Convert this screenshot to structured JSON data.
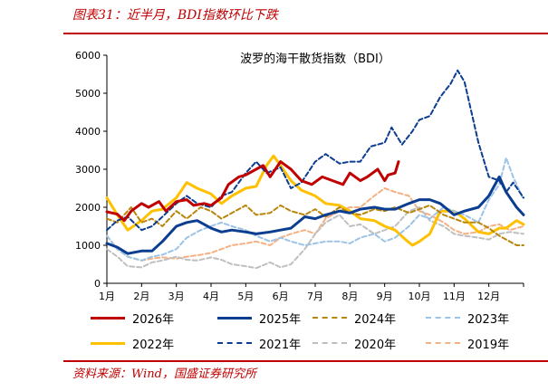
{
  "header": {
    "title": "图表31：近半月，BDI指数环比下跌"
  },
  "footer": {
    "source": "资料来源：Wind，国盛证券研究所"
  },
  "chart_data": {
    "type": "line",
    "title": "波罗的海干散货指数（BDI）",
    "xlabel": "",
    "ylabel": "",
    "categories": [
      "1月",
      "2月",
      "3月",
      "4月",
      "5月",
      "6月",
      "7月",
      "8月",
      "9月",
      "10月",
      "11月",
      "12月"
    ],
    "ylim": [
      0,
      6000
    ],
    "yticks": [
      0,
      1000,
      2000,
      3000,
      4000,
      5000,
      6000
    ],
    "series": [
      {
        "name": "2026年",
        "color": "#c00000",
        "style": "solid",
        "width": 3,
        "values": [
          [
            0,
            1880
          ],
          [
            0.3,
            1820
          ],
          [
            0.5,
            1650
          ],
          [
            0.7,
            1900
          ],
          [
            1.0,
            2100
          ],
          [
            1.2,
            2000
          ],
          [
            1.5,
            2150
          ],
          [
            1.7,
            1900
          ],
          [
            2.0,
            2150
          ],
          [
            2.3,
            2200
          ],
          [
            2.5,
            2050
          ],
          [
            2.8,
            2100
          ],
          [
            3.0,
            2050
          ],
          [
            3.3,
            2250
          ],
          [
            3.5,
            2600
          ],
          [
            3.8,
            2800
          ],
          [
            4.0,
            2850
          ],
          [
            4.3,
            3000
          ],
          [
            4.5,
            3100
          ],
          [
            4.7,
            2800
          ],
          [
            5.0,
            3200
          ],
          [
            5.3,
            3000
          ],
          [
            5.6,
            2700
          ],
          [
            5.9,
            2600
          ],
          [
            6.2,
            2800
          ],
          [
            6.5,
            2700
          ],
          [
            6.8,
            2600
          ],
          [
            7.0,
            2900
          ],
          [
            7.3,
            2700
          ],
          [
            7.5,
            2800
          ],
          [
            7.8,
            3000
          ],
          [
            8.0,
            2700
          ],
          [
            8.1,
            2850
          ],
          [
            8.3,
            2900
          ],
          [
            8.4,
            3200
          ]
        ]
      },
      {
        "name": "2025年",
        "color": "#0b3d91",
        "style": "solid",
        "width": 3,
        "values": [
          [
            0,
            1050
          ],
          [
            0.3,
            950
          ],
          [
            0.6,
            780
          ],
          [
            1.0,
            850
          ],
          [
            1.3,
            850
          ],
          [
            1.6,
            1100
          ],
          [
            2.0,
            1500
          ],
          [
            2.3,
            1600
          ],
          [
            2.6,
            1650
          ],
          [
            3.0,
            1450
          ],
          [
            3.3,
            1350
          ],
          [
            3.6,
            1400
          ],
          [
            4.0,
            1350
          ],
          [
            4.3,
            1300
          ],
          [
            4.7,
            1350
          ],
          [
            5.0,
            1400
          ],
          [
            5.3,
            1450
          ],
          [
            5.7,
            1750
          ],
          [
            6.0,
            1700
          ],
          [
            6.3,
            1800
          ],
          [
            6.7,
            1900
          ],
          [
            7.0,
            1850
          ],
          [
            7.3,
            1950
          ],
          [
            7.7,
            2000
          ],
          [
            8.0,
            1950
          ],
          [
            8.3,
            1950
          ],
          [
            8.7,
            2100
          ],
          [
            9.0,
            2200
          ],
          [
            9.3,
            2200
          ],
          [
            9.6,
            2100
          ],
          [
            10.0,
            1800
          ],
          [
            10.3,
            1900
          ],
          [
            10.7,
            2000
          ],
          [
            11.0,
            2300
          ],
          [
            11.3,
            2800
          ],
          [
            11.5,
            2400
          ],
          [
            11.8,
            2000
          ],
          [
            12.0,
            1800
          ]
        ]
      },
      {
        "name": "2024年",
        "color": "#b8860b",
        "style": "dashed",
        "width": 2,
        "values": [
          [
            0,
            1700
          ],
          [
            0.3,
            1600
          ],
          [
            0.7,
            2000
          ],
          [
            1.0,
            1600
          ],
          [
            1.3,
            1700
          ],
          [
            1.6,
            1500
          ],
          [
            2.0,
            1900
          ],
          [
            2.3,
            1700
          ],
          [
            2.7,
            2000
          ],
          [
            3.0,
            1900
          ],
          [
            3.3,
            1700
          ],
          [
            3.6,
            1850
          ],
          [
            4.0,
            2050
          ],
          [
            4.3,
            1800
          ],
          [
            4.7,
            1850
          ],
          [
            5.0,
            2050
          ],
          [
            5.3,
            1900
          ],
          [
            5.7,
            1800
          ],
          [
            6.0,
            1950
          ],
          [
            6.3,
            1750
          ],
          [
            6.7,
            2000
          ],
          [
            7.0,
            1850
          ],
          [
            7.3,
            1800
          ],
          [
            7.7,
            1950
          ],
          [
            8.0,
            1900
          ],
          [
            8.3,
            2000
          ],
          [
            8.7,
            1850
          ],
          [
            9.0,
            1950
          ],
          [
            9.3,
            2050
          ],
          [
            9.7,
            1800
          ],
          [
            10.0,
            1700
          ],
          [
            10.3,
            1600
          ],
          [
            10.7,
            1600
          ],
          [
            11.0,
            1450
          ],
          [
            11.3,
            1250
          ],
          [
            11.6,
            1100
          ],
          [
            11.8,
            1000
          ],
          [
            12.0,
            1000
          ]
        ]
      },
      {
        "name": "2023年",
        "color": "#9dc3e6",
        "style": "dashed",
        "width": 2,
        "values": [
          [
            0,
            1250
          ],
          [
            0.3,
            900
          ],
          [
            0.6,
            700
          ],
          [
            1.0,
            600
          ],
          [
            1.3,
            700
          ],
          [
            1.6,
            750
          ],
          [
            2.0,
            900
          ],
          [
            2.3,
            1200
          ],
          [
            2.7,
            1400
          ],
          [
            3.0,
            1500
          ],
          [
            3.3,
            1600
          ],
          [
            3.6,
            1500
          ],
          [
            4.0,
            1400
          ],
          [
            4.3,
            1250
          ],
          [
            4.7,
            1100
          ],
          [
            5.0,
            1200
          ],
          [
            5.3,
            1100
          ],
          [
            5.7,
            1000
          ],
          [
            6.0,
            1050
          ],
          [
            6.3,
            1100
          ],
          [
            6.7,
            1100
          ],
          [
            7.0,
            1050
          ],
          [
            7.3,
            1200
          ],
          [
            7.7,
            1300
          ],
          [
            8.0,
            1100
          ],
          [
            8.3,
            1200
          ],
          [
            8.7,
            1500
          ],
          [
            9.0,
            1800
          ],
          [
            9.3,
            1700
          ],
          [
            9.7,
            2000
          ],
          [
            10.0,
            1900
          ],
          [
            10.3,
            1800
          ],
          [
            10.7,
            1600
          ],
          [
            11.0,
            2200
          ],
          [
            11.3,
            2600
          ],
          [
            11.5,
            3300
          ],
          [
            11.7,
            2800
          ],
          [
            12.0,
            2200
          ]
        ]
      },
      {
        "name": "2022年",
        "color": "#ffc000",
        "style": "solid",
        "width": 3,
        "values": [
          [
            0,
            2250
          ],
          [
            0.3,
            1800
          ],
          [
            0.6,
            1400
          ],
          [
            1.0,
            1650
          ],
          [
            1.3,
            1900
          ],
          [
            1.6,
            1950
          ],
          [
            2.0,
            2250
          ],
          [
            2.3,
            2650
          ],
          [
            2.6,
            2500
          ],
          [
            3.0,
            2350
          ],
          [
            3.3,
            2100
          ],
          [
            3.6,
            2300
          ],
          [
            4.0,
            2500
          ],
          [
            4.3,
            2550
          ],
          [
            4.6,
            3100
          ],
          [
            4.8,
            3350
          ],
          [
            5.0,
            3100
          ],
          [
            5.3,
            2700
          ],
          [
            5.6,
            2450
          ],
          [
            6.0,
            2300
          ],
          [
            6.3,
            2100
          ],
          [
            6.7,
            2050
          ],
          [
            7.0,
            1900
          ],
          [
            7.3,
            1700
          ],
          [
            7.7,
            1650
          ],
          [
            8.0,
            1500
          ],
          [
            8.3,
            1400
          ],
          [
            8.6,
            1150
          ],
          [
            8.8,
            1000
          ],
          [
            9.0,
            1100
          ],
          [
            9.3,
            1300
          ],
          [
            9.6,
            1900
          ],
          [
            10.0,
            1900
          ],
          [
            10.3,
            1700
          ],
          [
            10.7,
            1350
          ],
          [
            11.0,
            1300
          ],
          [
            11.3,
            1450
          ],
          [
            11.5,
            1450
          ],
          [
            11.8,
            1650
          ],
          [
            12.0,
            1550
          ]
        ]
      },
      {
        "name": "2021年",
        "color": "#0b3d91",
        "style": "dashed",
        "width": 2,
        "values": [
          [
            0,
            1400
          ],
          [
            0.3,
            1650
          ],
          [
            0.6,
            1750
          ],
          [
            1.0,
            1400
          ],
          [
            1.3,
            1500
          ],
          [
            1.6,
            1750
          ],
          [
            2.0,
            2100
          ],
          [
            2.3,
            2300
          ],
          [
            2.6,
            2100
          ],
          [
            3.0,
            2000
          ],
          [
            3.3,
            2300
          ],
          [
            3.6,
            2400
          ],
          [
            4.0,
            2900
          ],
          [
            4.3,
            3200
          ],
          [
            4.6,
            2900
          ],
          [
            5.0,
            3050
          ],
          [
            5.3,
            2500
          ],
          [
            5.6,
            2650
          ],
          [
            6.0,
            3200
          ],
          [
            6.3,
            3400
          ],
          [
            6.7,
            3150
          ],
          [
            7.0,
            3200
          ],
          [
            7.3,
            3200
          ],
          [
            7.6,
            3600
          ],
          [
            8.0,
            3700
          ],
          [
            8.2,
            4100
          ],
          [
            8.5,
            3650
          ],
          [
            8.8,
            4000
          ],
          [
            9.0,
            4300
          ],
          [
            9.3,
            4400
          ],
          [
            9.6,
            4900
          ],
          [
            9.9,
            5250
          ],
          [
            10.1,
            5600
          ],
          [
            10.3,
            5300
          ],
          [
            10.5,
            4500
          ],
          [
            10.7,
            3700
          ],
          [
            11.0,
            2800
          ],
          [
            11.3,
            2700
          ],
          [
            11.5,
            2400
          ],
          [
            11.7,
            2650
          ],
          [
            12.0,
            2250
          ]
        ]
      },
      {
        "name": "2020年",
        "color": "#bfbfbf",
        "style": "dashed",
        "width": 2,
        "values": [
          [
            0,
            900
          ],
          [
            0.3,
            700
          ],
          [
            0.6,
            450
          ],
          [
            1.0,
            420
          ],
          [
            1.3,
            550
          ],
          [
            1.6,
            600
          ],
          [
            2.0,
            700
          ],
          [
            2.3,
            620
          ],
          [
            2.6,
            600
          ],
          [
            3.0,
            680
          ],
          [
            3.3,
            620
          ],
          [
            3.6,
            500
          ],
          [
            4.0,
            450
          ],
          [
            4.3,
            400
          ],
          [
            4.7,
            550
          ],
          [
            5.0,
            420
          ],
          [
            5.3,
            500
          ],
          [
            5.7,
            900
          ],
          [
            6.0,
            1300
          ],
          [
            6.3,
            1600
          ],
          [
            6.7,
            1800
          ],
          [
            7.0,
            1500
          ],
          [
            7.3,
            1550
          ],
          [
            7.7,
            1300
          ],
          [
            8.0,
            1400
          ],
          [
            8.3,
            1500
          ],
          [
            8.7,
            1900
          ],
          [
            9.0,
            2000
          ],
          [
            9.3,
            1650
          ],
          [
            9.7,
            1500
          ],
          [
            10.0,
            1300
          ],
          [
            10.3,
            1250
          ],
          [
            10.7,
            1200
          ],
          [
            11.0,
            1150
          ],
          [
            11.3,
            1300
          ],
          [
            11.6,
            1350
          ],
          [
            12.0,
            1300
          ]
        ]
      },
      {
        "name": "2019年",
        "color": "#f4b183",
        "style": "dashed",
        "width": 2,
        "values": [
          [
            0,
            1250
          ],
          [
            0.3,
            900
          ],
          [
            0.6,
            700
          ],
          [
            1.0,
            600
          ],
          [
            1.3,
            650
          ],
          [
            1.6,
            680
          ],
          [
            2.0,
            650
          ],
          [
            2.3,
            700
          ],
          [
            2.7,
            750
          ],
          [
            3.0,
            800
          ],
          [
            3.3,
            900
          ],
          [
            3.6,
            1000
          ],
          [
            4.0,
            1050
          ],
          [
            4.3,
            1100
          ],
          [
            4.7,
            1000
          ],
          [
            5.0,
            1200
          ],
          [
            5.3,
            1300
          ],
          [
            5.7,
            1400
          ],
          [
            6.0,
            1300
          ],
          [
            6.3,
            1700
          ],
          [
            6.7,
            1900
          ],
          [
            7.0,
            2000
          ],
          [
            7.3,
            2000
          ],
          [
            7.7,
            2300
          ],
          [
            8.0,
            2500
          ],
          [
            8.3,
            2400
          ],
          [
            8.7,
            2300
          ],
          [
            9.0,
            1900
          ],
          [
            9.3,
            1800
          ],
          [
            9.7,
            1600
          ],
          [
            10.0,
            1400
          ],
          [
            10.3,
            1300
          ],
          [
            10.7,
            1350
          ],
          [
            11.0,
            1500
          ],
          [
            11.3,
            1550
          ],
          [
            11.6,
            1400
          ],
          [
            12.0,
            1500
          ]
        ]
      }
    ]
  }
}
